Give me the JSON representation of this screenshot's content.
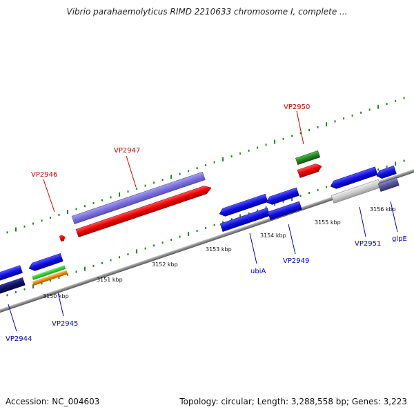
{
  "header": {
    "title": "Vibrio parahaemolyticus RIMD 2210633 chromosome I, complete ..."
  },
  "footer": {
    "accession": "Accession: NC_004603",
    "summary": "Topology: circular; Length: 3,288,558 bp; Genes: 3,223"
  },
  "map": {
    "kbp_labels": [
      "3150 kbp",
      "3151 kbp",
      "3152 kbp",
      "3153 kbp",
      "3154 kbp",
      "3155 kbp",
      "3156 kbp"
    ],
    "gene_labels": [
      {
        "id": "vp2944",
        "text": "VP2944",
        "color": "#0000cc"
      },
      {
        "id": "vp2945",
        "text": "VP2945",
        "color": "#0000cc"
      },
      {
        "id": "vp2946",
        "text": "VP2946",
        "color": "#cc0000"
      },
      {
        "id": "vp2947",
        "text": "VP2947",
        "color": "#cc0000"
      },
      {
        "id": "ubia",
        "text": "ubiA",
        "color": "#0000cc"
      },
      {
        "id": "vp2949",
        "text": "VP2949",
        "color": "#0000cc"
      },
      {
        "id": "vp2950",
        "text": "VP2950",
        "color": "#cc0000"
      },
      {
        "id": "vp2951",
        "text": "VP2951",
        "color": "#0000cc"
      },
      {
        "id": "glpe",
        "text": "glpE",
        "color": "#0000cc"
      }
    ]
  }
}
